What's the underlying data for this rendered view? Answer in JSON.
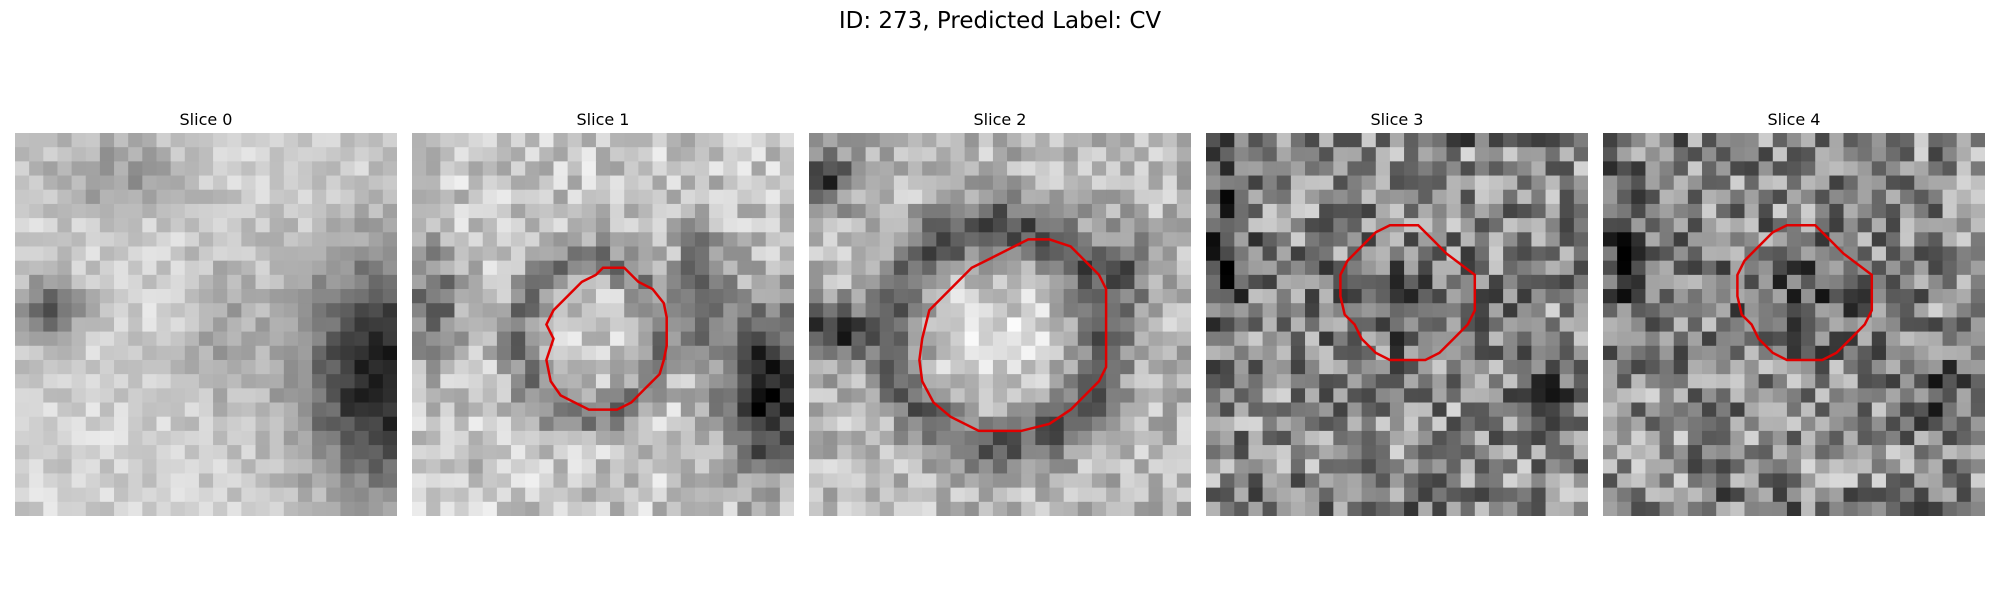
{
  "figure": {
    "title": "ID: 273, Predicted Label: CV",
    "contour_color": "#e00000",
    "grid_size": 27,
    "panels": [
      {
        "title": "Slice 0",
        "seed": 11,
        "noise": 0.1,
        "contour": false,
        "blobs": [
          {
            "cx": 26.5,
            "cy": 17,
            "rx": 6.5,
            "ry": 8.5,
            "v": 0.08
          },
          {
            "cx": 2.5,
            "cy": 12.5,
            "rx": 2.2,
            "ry": 2.6,
            "v": 0.35
          },
          {
            "cx": 7,
            "cy": 3,
            "rx": 5,
            "ry": 3,
            "v": 0.6
          },
          {
            "cx": 15,
            "cy": 14,
            "rx": 3,
            "ry": 6,
            "v": 0.65
          }
        ],
        "base": 0.82
      },
      {
        "title": "Slice 1",
        "seed": 23,
        "noise": 0.16,
        "contour": true,
        "blobs": [
          {
            "cx": 12.5,
            "cy": 14.5,
            "rx": 4.8,
            "ry": 5.5,
            "v": 0.45,
            "ring": true
          },
          {
            "cx": 13.5,
            "cy": 13.5,
            "rx": 2.6,
            "ry": 3.2,
            "v": 0.8
          },
          {
            "cx": 25,
            "cy": 18,
            "rx": 3,
            "ry": 6,
            "v": 0.05
          },
          {
            "cx": 20.5,
            "cy": 11,
            "rx": 1.8,
            "ry": 4.5,
            "v": 0.35
          },
          {
            "cx": 1.5,
            "cy": 12,
            "rx": 2,
            "ry": 4,
            "v": 0.4
          }
        ],
        "base": 0.78
      },
      {
        "title": "Slice 2",
        "seed": 37,
        "noise": 0.16,
        "contour": true,
        "blobs": [
          {
            "cx": 13.5,
            "cy": 14.2,
            "rx": 7.2,
            "ry": 7.5,
            "v": 0.25,
            "ring": true
          },
          {
            "cx": 13,
            "cy": 15,
            "rx": 5.5,
            "ry": 5.5,
            "v": 0.85
          },
          {
            "cx": 2,
            "cy": 14,
            "rx": 3,
            "ry": 2,
            "v": 0.15
          },
          {
            "cx": 1.2,
            "cy": 3,
            "rx": 1.8,
            "ry": 2,
            "v": 0.2
          },
          {
            "cx": 22,
            "cy": 10,
            "rx": 2,
            "ry": 3,
            "v": 0.35
          }
        ],
        "base": 0.72
      },
      {
        "title": "Slice 3",
        "seed": 53,
        "noise": 0.3,
        "contour": true,
        "blobs": [
          {
            "cx": 13.5,
            "cy": 12,
            "rx": 6,
            "ry": 4,
            "v": 0.35
          },
          {
            "cx": 1,
            "cy": 8,
            "rx": 2,
            "ry": 6,
            "v": 0.2
          },
          {
            "cx": 24,
            "cy": 18,
            "rx": 2,
            "ry": 3,
            "v": 0.3
          }
        ],
        "base": 0.55
      },
      {
        "title": "Slice 4",
        "seed": 71,
        "noise": 0.3,
        "contour": true,
        "blobs": [
          {
            "cx": 13.5,
            "cy": 12,
            "rx": 6,
            "ry": 4,
            "v": 0.35
          },
          {
            "cx": 1,
            "cy": 8,
            "rx": 2,
            "ry": 6,
            "v": 0.2
          },
          {
            "cx": 24,
            "cy": 18,
            "rx": 2,
            "ry": 3,
            "v": 0.3
          }
        ],
        "base": 0.55
      }
    ]
  }
}
